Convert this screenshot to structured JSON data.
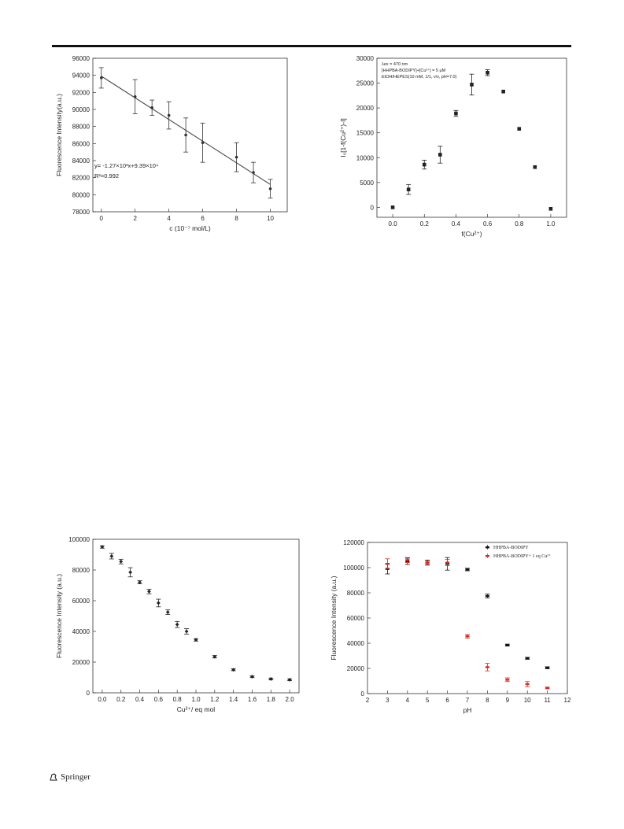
{
  "footer": {
    "publisher": "Springer"
  },
  "chart_data": [
    {
      "id": "c1",
      "type": "scatter",
      "ylabel": "Fluorescence Intensity(a.u.)",
      "xlabel": "c (10⁻⁷ mol/L)",
      "xlim": [
        -0.5,
        11
      ],
      "ylim": [
        78000,
        96000
      ],
      "xticks": [
        0,
        2,
        4,
        6,
        8,
        10
      ],
      "yticks": [
        78000,
        80000,
        82000,
        84000,
        86000,
        88000,
        90000,
        92000,
        94000,
        96000
      ],
      "series": [
        {
          "x": [
            0,
            2,
            3,
            4,
            5,
            6,
            8,
            9,
            10
          ],
          "y": [
            93700,
            91500,
            90200,
            89300,
            87000,
            86100,
            84400,
            82600,
            80700
          ],
          "err": [
            1200,
            2000,
            900,
            1600,
            2000,
            2300,
            1700,
            1200,
            1100
          ],
          "color": "#333333"
        }
      ],
      "fit": {
        "slope": -1270,
        "intercept": 93900,
        "color": "#444444"
      },
      "annotations": [
        "y= -1.27×10³x+9.39×10⁴",
        "R²=0.992"
      ]
    },
    {
      "id": "c2",
      "type": "scatter",
      "ylabel": "I₀[1-f(Cu²⁺)-I]",
      "xlabel": "f(Cu²⁺)",
      "xlim": [
        -0.1,
        1.1
      ],
      "ylim": [
        -2000,
        30000
      ],
      "xticks": [
        0.0,
        0.2,
        0.4,
        0.6,
        0.8,
        1.0
      ],
      "yticks": [
        0,
        5000,
        10000,
        15000,
        20000,
        25000,
        30000
      ],
      "series": [
        {
          "x": [
            0.0,
            0.1,
            0.2,
            0.3,
            0.4,
            0.5,
            0.6,
            0.7,
            0.8,
            0.9,
            1.0
          ],
          "y": [
            0,
            3600,
            8600,
            10600,
            18900,
            24700,
            27100,
            23300,
            15800,
            8100,
            -300
          ],
          "err": [
            0,
            1000,
            900,
            1700,
            600,
            2100,
            600,
            0,
            0,
            0,
            0
          ],
          "color": "#222222"
        }
      ],
      "annotations": [
        "λex = 470 nm",
        "[HHPBA-BODIPY]+[Cu²⁺] = 5 μM",
        "EtOH/HEPES(10 mM, 1/1, v/v, pH=7.0)"
      ]
    },
    {
      "id": "c3",
      "type": "scatter",
      "ylabel": "Fluorescence Intensity (a.u.)",
      "xlabel": "Cu²⁺/ eq mol",
      "xlim": [
        -0.1,
        2.1
      ],
      "ylim": [
        0,
        100000
      ],
      "xticks": [
        0.0,
        0.2,
        0.4,
        0.6,
        0.8,
        1.0,
        1.2,
        1.4,
        1.6,
        1.8,
        2.0
      ],
      "yticks": [
        0,
        20000,
        40000,
        60000,
        80000,
        100000
      ],
      "series": [
        {
          "x": [
            0.0,
            0.1,
            0.2,
            0.3,
            0.4,
            0.5,
            0.6,
            0.7,
            0.8,
            0.9,
            1.0,
            1.2,
            1.4,
            1.6,
            1.8,
            2.0
          ],
          "y": [
            95000,
            89000,
            85500,
            78500,
            72000,
            66000,
            58500,
            52500,
            44500,
            40000,
            34500,
            23500,
            15000,
            10500,
            9000,
            8500
          ],
          "err": [
            800,
            1800,
            1500,
            3000,
            1000,
            1500,
            2500,
            1500,
            2000,
            1800,
            800,
            800,
            600,
            600,
            600,
            600
          ],
          "color": "#222222"
        }
      ]
    },
    {
      "id": "c4",
      "type": "scatter",
      "ylabel": "Fluorescence Intensity (a.u.)",
      "xlabel": "pH",
      "xlim": [
        2,
        12
      ],
      "ylim": [
        0,
        120000
      ],
      "xticks": [
        2,
        3,
        4,
        5,
        6,
        7,
        8,
        9,
        10,
        11,
        12
      ],
      "yticks": [
        0,
        20000,
        40000,
        60000,
        80000,
        100000,
        120000
      ],
      "series": [
        {
          "name": "HHPBA-BODIPY",
          "x": [
            3,
            4,
            5,
            6,
            7,
            8,
            9,
            10,
            11
          ],
          "y": [
            99000,
            105000,
            104000,
            103000,
            98500,
            77500,
            38500,
            28000,
            20500
          ],
          "err": [
            4000,
            2500,
            2000,
            5000,
            1000,
            1500,
            800,
            800,
            800
          ],
          "color": "#111111"
        },
        {
          "name": "HHPBA-BODIPY+ 1 eq Cu²⁺",
          "x": [
            3,
            4,
            5,
            6,
            7,
            8,
            9,
            10,
            11
          ],
          "y": [
            103000,
            106000,
            104000,
            104000,
            45500,
            21000,
            11000,
            7500,
            4500
          ],
          "err": [
            4000,
            2000,
            1500,
            2500,
            1500,
            3000,
            1500,
            2000,
            700
          ],
          "color": "#d42a20"
        }
      ],
      "legend": "top-right"
    }
  ]
}
